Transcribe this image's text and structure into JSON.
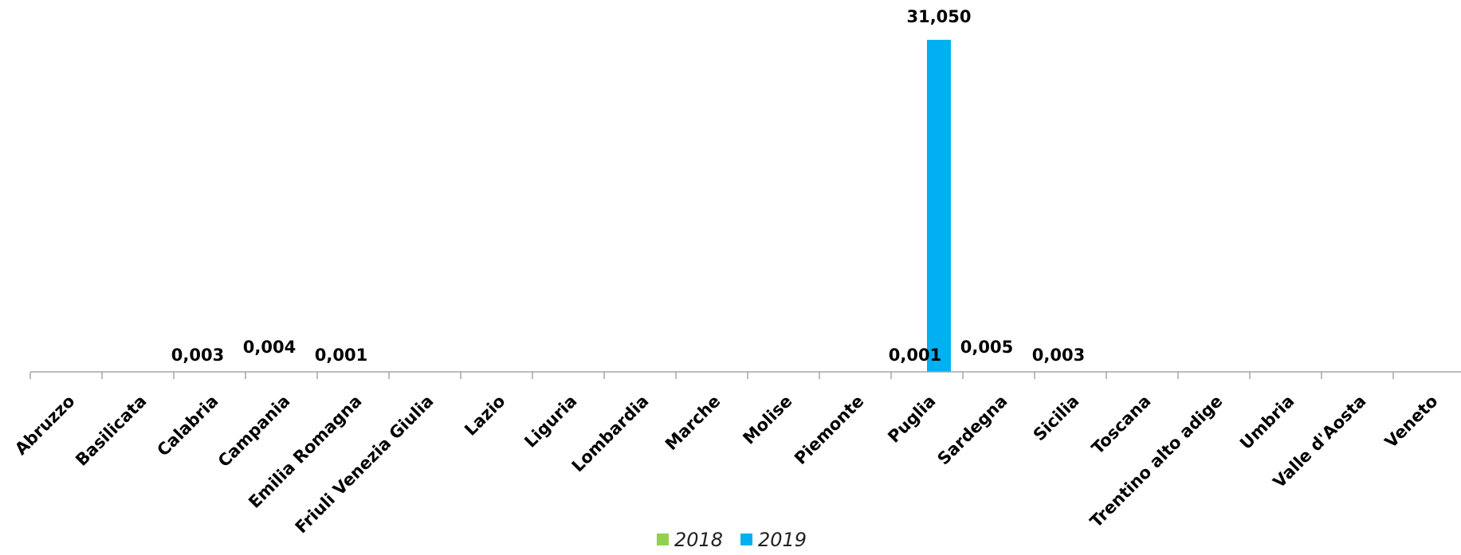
{
  "chart_data": {
    "type": "bar",
    "categories": [
      "Abruzzo",
      "Basilicata",
      "Calabria",
      "Campania",
      "Emilia Romagna",
      "Friuli Venezia Giulia",
      "Lazio",
      "Liguria",
      "Lombardia",
      "Marche",
      "Molise",
      "Piemonte",
      "Puglia",
      "Sardegna",
      "Sicilia",
      "Toscana",
      "Trentino alto adige",
      "Umbria",
      "Valle d'Aosta",
      "Veneto"
    ],
    "series": [
      {
        "name": "2018",
        "color": "#92d050",
        "values": [
          0,
          0,
          0.003,
          0.004,
          0.001,
          0,
          0,
          0,
          0,
          0,
          0,
          0,
          0.001,
          0.005,
          0.003,
          0,
          0,
          0,
          0,
          0
        ],
        "labels": [
          "",
          "",
          "0,003",
          "0,004",
          "0,001",
          "",
          "",
          "",
          "",
          "",
          "",
          "",
          "0,001",
          "0,005",
          "0,003",
          "",
          "",
          "",
          "",
          ""
        ]
      },
      {
        "name": "2019",
        "color": "#00b0f0",
        "values": [
          0,
          0,
          0,
          0,
          0,
          0,
          0,
          0,
          0,
          0,
          0,
          0,
          31.05,
          0,
          0,
          0,
          0,
          0,
          0,
          0
        ],
        "labels": [
          "",
          "",
          "",
          "",
          "",
          "",
          "",
          "",
          "",
          "",
          "",
          "",
          "31,050",
          "",
          "",
          "",
          "",
          "",
          "",
          ""
        ]
      }
    ],
    "ylim": [
      0,
      31.05
    ],
    "title": "",
    "xlabel": "",
    "ylabel": "",
    "grid": false,
    "legend_position": "bottom"
  }
}
